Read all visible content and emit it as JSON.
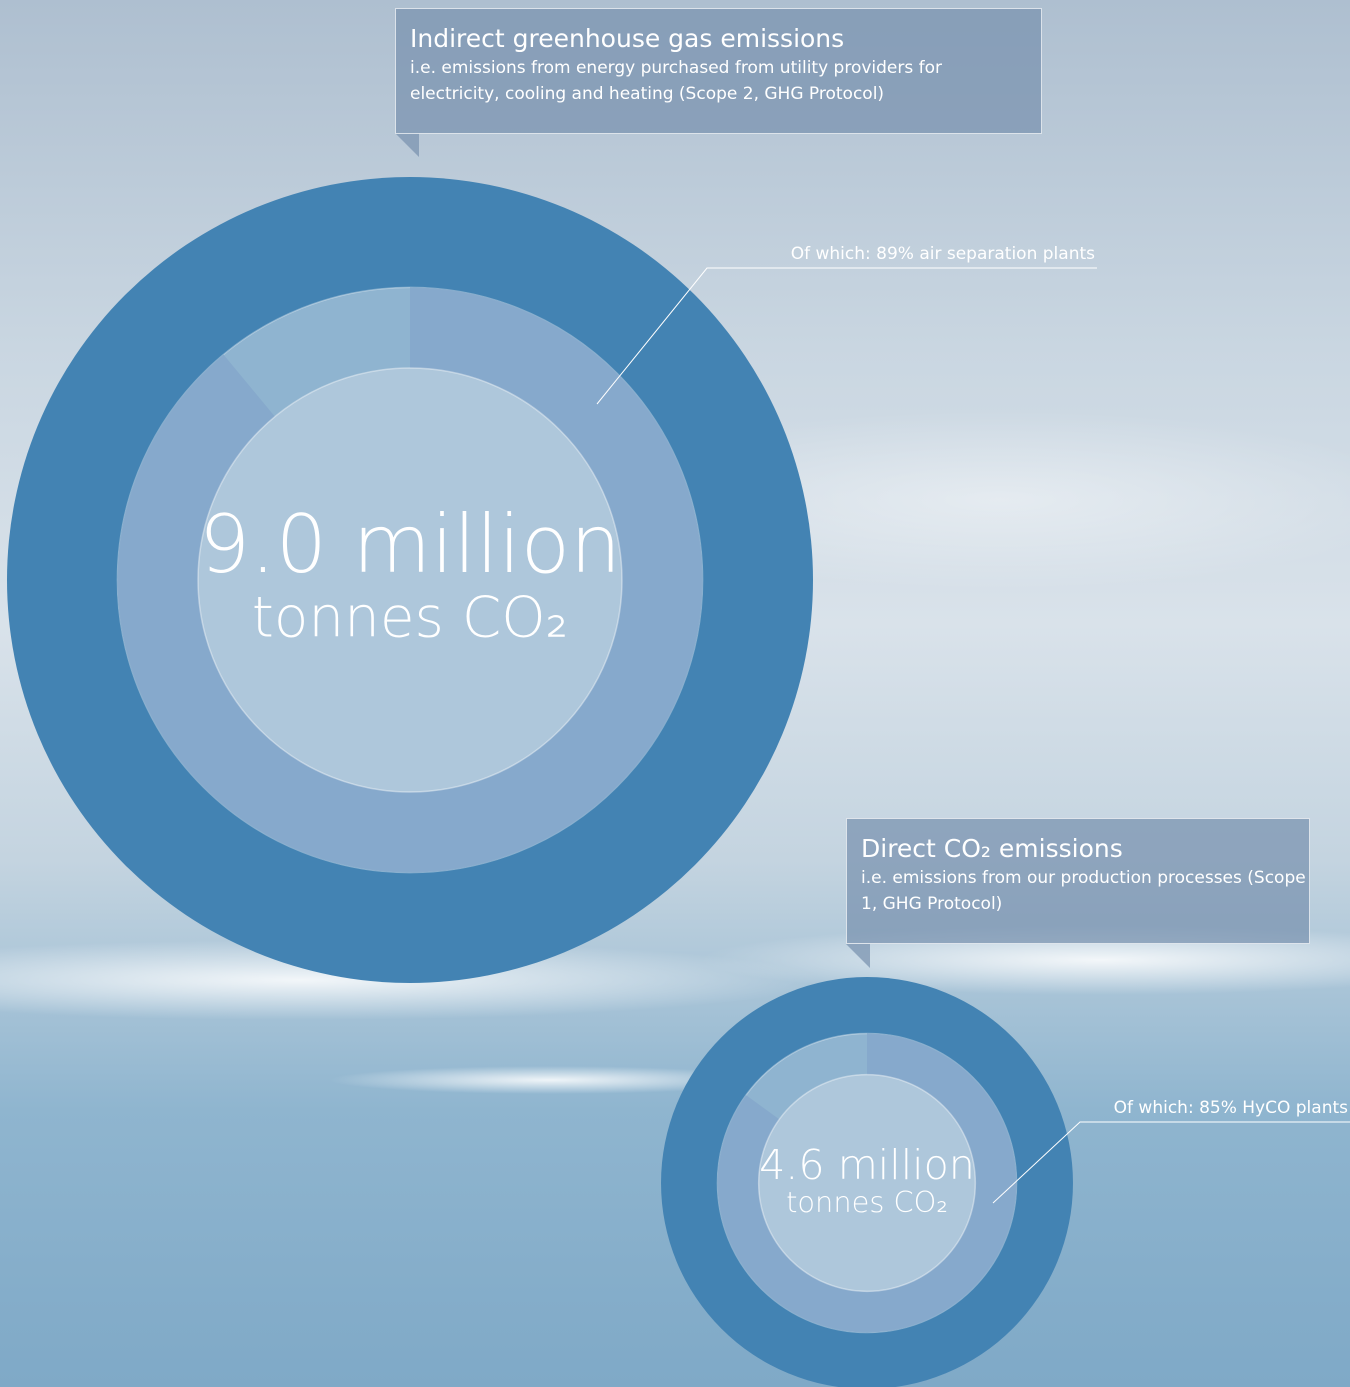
{
  "chart_data": [
    {
      "type": "donut",
      "title": "Indirect greenhouse gas emissions",
      "subtitle": "i.e. emissions from energy purchased from utility providers for electricity, cooling and heating (Scope 2, GHG Protocol)",
      "value": 9.0,
      "value_label": "9.0 million",
      "unit": "tonnes CO₂",
      "share": 89,
      "share_label": "Of which: 89% air separation plants",
      "color": "#4383b3",
      "share_color": "#86a8cb"
    },
    {
      "type": "donut",
      "title": "Direct CO₂ emissions",
      "subtitle": "i.e. emissions from our production processes (Scope 1, GHG Protocol)",
      "value": 4.6,
      "value_label": "4.6 million",
      "unit": "tonnes CO₂",
      "share": 85,
      "share_label": "Of which: 85% HyCO plants",
      "color": "#4383b3",
      "share_color": "#86a8cb"
    }
  ]
}
